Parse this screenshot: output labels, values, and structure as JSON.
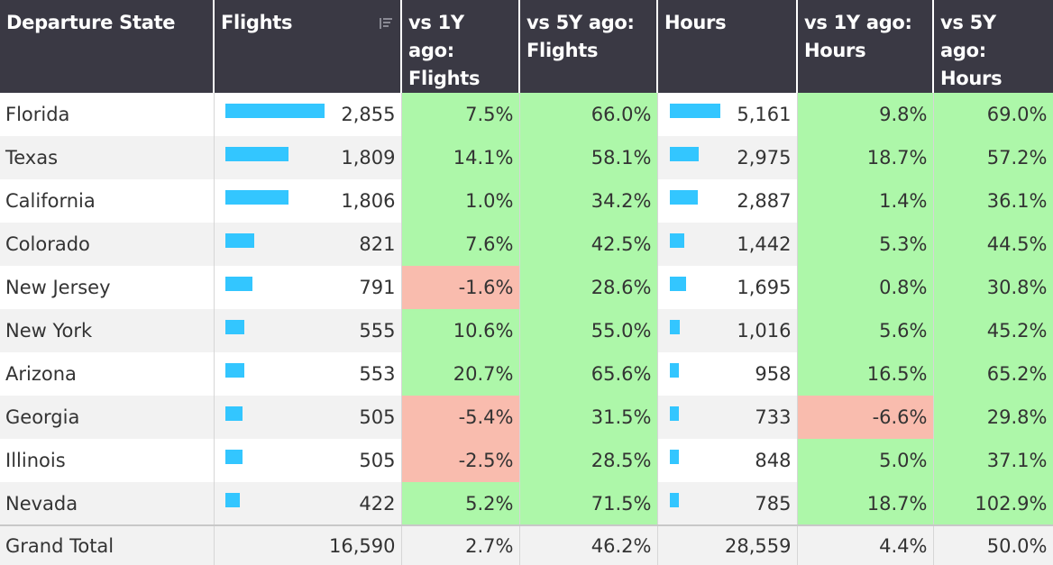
{
  "headers": {
    "state": "Departure State",
    "flights": "Flights",
    "vs1y_flights": [
      "vs 1Y ago:",
      "Flights"
    ],
    "vs5y_flights": [
      "vs 5Y ago:",
      "Flights"
    ],
    "hours": "Hours",
    "vs1y_hours": [
      "vs 1Y ago:",
      "Hours"
    ],
    "vs5y_hours": [
      "vs 5Y ago:",
      "Hours"
    ]
  },
  "colors": {
    "header_bg": "#3a3944",
    "bar": "#33c6ff",
    "positive": "#adf7a9",
    "negative": "#f9bcae"
  },
  "rows": [
    {
      "state": "Florida",
      "flights": "2,855",
      "flights_value": 2855,
      "vs1y_flights": "7.5%",
      "vs5y_flights": "66.0%",
      "hours": "5,161",
      "hours_value": 5161,
      "vs1y_hours": "9.8%",
      "vs5y_hours": "69.0%"
    },
    {
      "state": "Texas",
      "flights": "1,809",
      "flights_value": 1809,
      "vs1y_flights": "14.1%",
      "vs5y_flights": "58.1%",
      "hours": "2,975",
      "hours_value": 2975,
      "vs1y_hours": "18.7%",
      "vs5y_hours": "57.2%"
    },
    {
      "state": "California",
      "flights": "1,806",
      "flights_value": 1806,
      "vs1y_flights": "1.0%",
      "vs5y_flights": "34.2%",
      "hours": "2,887",
      "hours_value": 2887,
      "vs1y_hours": "1.4%",
      "vs5y_hours": "36.1%"
    },
    {
      "state": "Colorado",
      "flights": "821",
      "flights_value": 821,
      "vs1y_flights": "7.6%",
      "vs5y_flights": "42.5%",
      "hours": "1,442",
      "hours_value": 1442,
      "vs1y_hours": "5.3%",
      "vs5y_hours": "44.5%"
    },
    {
      "state": "New Jersey",
      "flights": "791",
      "flights_value": 791,
      "vs1y_flights": "-1.6%",
      "vs5y_flights": "28.6%",
      "hours": "1,695",
      "hours_value": 1695,
      "vs1y_hours": "0.8%",
      "vs5y_hours": "30.8%"
    },
    {
      "state": "New York",
      "flights": "555",
      "flights_value": 555,
      "vs1y_flights": "10.6%",
      "vs5y_flights": "55.0%",
      "hours": "1,016",
      "hours_value": 1016,
      "vs1y_hours": "5.6%",
      "vs5y_hours": "45.2%"
    },
    {
      "state": "Arizona",
      "flights": "553",
      "flights_value": 553,
      "vs1y_flights": "20.7%",
      "vs5y_flights": "65.6%",
      "hours": "958",
      "hours_value": 958,
      "vs1y_hours": "16.5%",
      "vs5y_hours": "65.2%"
    },
    {
      "state": "Georgia",
      "flights": "505",
      "flights_value": 505,
      "vs1y_flights": "-5.4%",
      "vs5y_flights": "31.5%",
      "hours": "733",
      "hours_value": 733,
      "vs1y_hours": "-6.6%",
      "vs5y_hours": "29.8%"
    },
    {
      "state": "Illinois",
      "flights": "505",
      "flights_value": 505,
      "vs1y_flights": "-2.5%",
      "vs5y_flights": "28.5%",
      "hours": "848",
      "hours_value": 848,
      "vs1y_hours": "5.0%",
      "vs5y_hours": "37.1%"
    },
    {
      "state": "Nevada",
      "flights": "422",
      "flights_value": 422,
      "vs1y_flights": "5.2%",
      "vs5y_flights": "71.5%",
      "hours": "785",
      "hours_value": 785,
      "vs1y_hours": "18.7%",
      "vs5y_hours": "102.9%"
    }
  ],
  "total": {
    "label": "Grand Total",
    "flights": "16,590",
    "vs1y_flights": "2.7%",
    "vs5y_flights": "46.2%",
    "hours": "28,559",
    "vs1y_hours": "4.4%",
    "vs5y_hours": "50.0%"
  },
  "icons": {
    "flights_sort": "sort-descending-icon"
  }
}
